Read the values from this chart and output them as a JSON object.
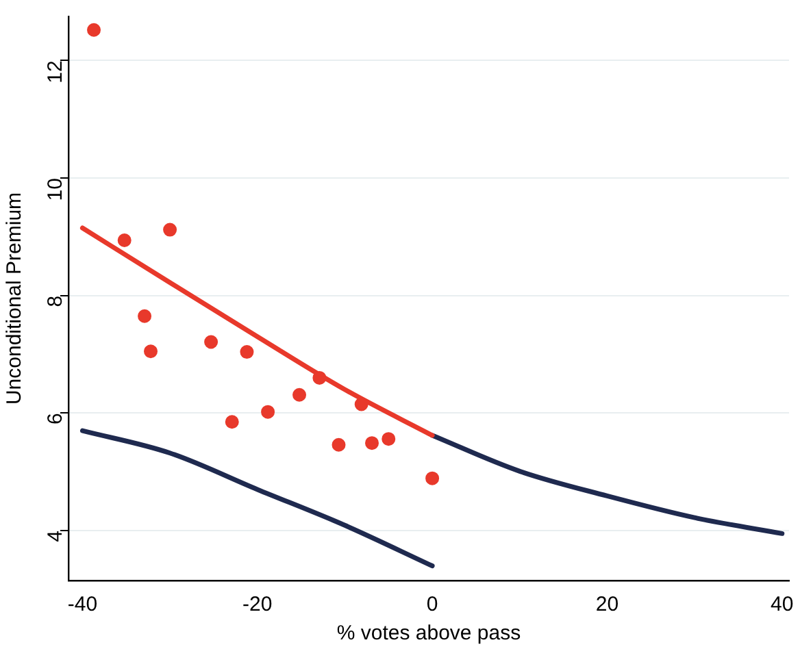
{
  "chart_data": {
    "type": "scatter",
    "xlabel": "% votes above pass",
    "ylabel": "Unconditional Premium",
    "xlim": [
      -41.6,
      40.8
    ],
    "ylim": [
      3.15,
      12.75
    ],
    "xticks": [
      -40,
      -20,
      0,
      20,
      40
    ],
    "yticks": [
      4,
      6,
      8,
      10,
      12
    ],
    "grid": "y",
    "legend": false,
    "series": [
      {
        "color": "#e8392b",
        "marker": "circle",
        "x": [
          -38.7,
          -35.2,
          -30.0,
          -32.9,
          -32.2,
          -25.3,
          -21.2,
          -22.9,
          -18.8,
          -15.2,
          -12.9,
          -10.7,
          -8.1,
          -6.9,
          -5.0,
          0.0
        ],
        "values": [
          12.52,
          8.94,
          9.12,
          7.65,
          7.05,
          7.21,
          7.04,
          5.85,
          6.02,
          6.31,
          6.6,
          5.46,
          6.15,
          5.49,
          5.56,
          4.89
        ]
      },
      {
        "type": "line",
        "color": "#e8392b",
        "marker": "none",
        "x": [
          -40,
          -30,
          -20,
          -10,
          0
        ],
        "values": [
          9.15,
          8.22,
          7.3,
          6.4,
          5.62
        ]
      },
      {
        "type": "line",
        "color": "#1f2a4f",
        "marker": "none",
        "x": [
          -40,
          -30,
          -20,
          -10,
          0
        ],
        "values": [
          5.7,
          5.32,
          4.7,
          4.09,
          3.4
        ]
      },
      {
        "type": "line",
        "color": "#1f2a4f",
        "marker": "none",
        "x": [
          0,
          10,
          20,
          30,
          40
        ],
        "values": [
          5.62,
          5.01,
          4.59,
          4.22,
          3.95
        ]
      }
    ]
  }
}
